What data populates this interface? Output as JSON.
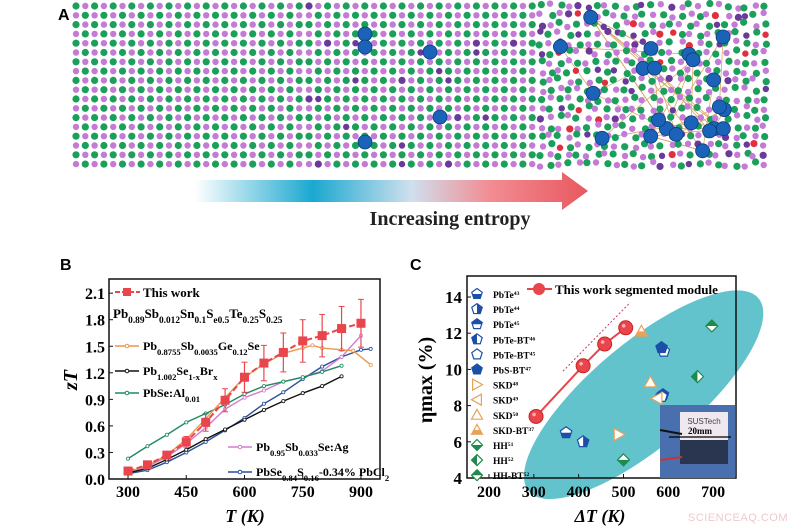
{
  "panel_labels": {
    "a": "A",
    "b": "B",
    "c": "C"
  },
  "panel_a": {
    "arrow_label": "Increasing entropy",
    "colors": {
      "green": "#1aa05a",
      "purple": "#c47ad6",
      "blue": "#1b63b8",
      "arrow_start": "#1aa8d0",
      "arrow_end": "#e8585f"
    }
  },
  "watermark": "SCIENCEAQ.COM",
  "chart_data": [
    {
      "type": "line",
      "panel": "B",
      "xlabel": "T (K)",
      "ylabel": "zT",
      "xlim": [
        251,
        949
      ],
      "ylim": [
        0,
        2.26
      ],
      "xticks": [
        300,
        450,
        600,
        750,
        900
      ],
      "yticks": [
        "0.0",
        "0.3",
        "0.6",
        "0.9",
        "1.2",
        "1.5",
        "1.8",
        "2.1"
      ],
      "grid": false,
      "series": [
        {
          "name": "This work",
          "sub_label": [
            [
              "Pb",
              ""
            ],
            [
              "0.89",
              "s"
            ],
            [
              "Sb",
              ""
            ],
            [
              "0.012",
              "s"
            ],
            [
              "Sn",
              ""
            ],
            [
              "0.1",
              "s"
            ],
            [
              "S",
              ""
            ],
            [
              "e0.5",
              "s"
            ],
            [
              "Te",
              ""
            ],
            [
              "0.25",
              "s"
            ],
            [
              "S",
              ""
            ],
            [
              "0.25",
              "s"
            ]
          ],
          "color": "#e8454d",
          "marker": "square",
          "dashed": true,
          "x": [
            300,
            350,
            400,
            450,
            500,
            550,
            600,
            650,
            700,
            750,
            800,
            850,
            900
          ],
          "y": [
            0.09,
            0.16,
            0.27,
            0.42,
            0.64,
            0.89,
            1.15,
            1.31,
            1.43,
            1.56,
            1.62,
            1.7,
            1.76
          ],
          "err": [
            0.02,
            0.03,
            0.04,
            0.06,
            0.1,
            0.13,
            0.17,
            0.2,
            0.22,
            0.24,
            0.24,
            0.25,
            0.27
          ]
        },
        {
          "name": [
            [
              "Pb",
              ""
            ],
            [
              "0.8755",
              "s"
            ],
            [
              "Sb",
              ""
            ],
            [
              "0.0035",
              "s"
            ],
            [
              "Ge",
              ""
            ],
            [
              "0.12",
              "s"
            ],
            [
              "Se",
              ""
            ]
          ],
          "color": "#e8994a",
          "x": [
            300,
            350,
            400,
            450,
            500,
            550,
            600,
            650,
            700,
            750,
            775,
            800,
            850,
            880,
            925
          ],
          "y": [
            0.08,
            0.15,
            0.27,
            0.45,
            0.68,
            0.92,
            1.15,
            1.3,
            1.42,
            1.48,
            1.51,
            1.48,
            1.46,
            1.45,
            1.29
          ]
        },
        {
          "name": [
            [
              "Pb",
              ""
            ],
            [
              "1.002",
              "s"
            ],
            [
              "Se",
              ""
            ],
            [
              "1-x",
              "s"
            ],
            [
              "Br",
              ""
            ],
            [
              "x",
              "s"
            ]
          ],
          "color": "#111111",
          "x": [
            300,
            350,
            400,
            450,
            500,
            550,
            600,
            650,
            700,
            750,
            800,
            850
          ],
          "y": [
            0.07,
            0.12,
            0.22,
            0.33,
            0.45,
            0.56,
            0.67,
            0.78,
            0.88,
            0.97,
            1.05,
            1.16
          ]
        },
        {
          "name": [
            [
              "PbSe:Al",
              ""
            ],
            [
              "0.01",
              "s"
            ]
          ],
          "color": "#1f8a5e",
          "x": [
            300,
            350,
            400,
            450,
            500,
            550,
            600,
            650,
            700,
            750,
            800,
            850
          ],
          "y": [
            0.23,
            0.37,
            0.5,
            0.64,
            0.74,
            0.84,
            0.96,
            1.05,
            1.1,
            1.15,
            1.21,
            1.28
          ]
        },
        {
          "name": [
            [
              "Pb",
              ""
            ],
            [
              "0.95",
              "s"
            ],
            [
              "Sb",
              ""
            ],
            [
              "0.033",
              "s"
            ],
            [
              "Se:Ag",
              ""
            ]
          ],
          "color": "#d67ad0",
          "x": [
            300,
            350,
            400,
            450,
            500,
            550,
            600,
            650,
            700,
            750,
            800,
            850,
            900
          ],
          "y": [
            0.08,
            0.14,
            0.25,
            0.4,
            0.58,
            0.79,
            0.92,
            1.0,
            1.1,
            1.15,
            1.22,
            1.38,
            1.62
          ]
        },
        {
          "name": [
            [
              "PbSe",
              ""
            ],
            [
              "0.84",
              "s"
            ],
            [
              "S",
              ""
            ],
            [
              "0.16",
              "s"
            ],
            [
              "-0.34% PbCl",
              ""
            ],
            [
              "2",
              "s"
            ]
          ],
          "color": "#2a4f9a",
          "x": [
            300,
            350,
            400,
            450,
            500,
            550,
            600,
            650,
            700,
            750,
            800,
            850,
            900,
            925
          ],
          "y": [
            0.06,
            0.1,
            0.19,
            0.3,
            0.42,
            0.55,
            0.69,
            0.85,
            0.98,
            1.13,
            1.27,
            1.38,
            1.46,
            1.47
          ]
        }
      ]
    },
    {
      "type": "scatter",
      "panel": "C",
      "xlabel": "ΔT (K)",
      "ylabel": "ηmax (%)",
      "xlim": [
        151,
        751
      ],
      "ylim": [
        4,
        15.16
      ],
      "xticks": [
        200,
        300,
        400,
        500,
        600,
        700
      ],
      "yticks": [
        4,
        6,
        8,
        10,
        12,
        14
      ],
      "grid": false,
      "this_work": {
        "name": "This work segmented module",
        "color": "#e8454d",
        "x": [
          305,
          410,
          458,
          505
        ],
        "y": [
          7.4,
          10.2,
          11.4,
          12.3
        ]
      },
      "trend_line": {
        "x": [
          365,
          515
        ],
        "y": [
          9.9,
          13.7
        ]
      },
      "ellipse_color": "#63c3cc",
      "legend": [
        {
          "label": "PbTe",
          "sup": "43",
          "marker": "pentagon-half-bottom",
          "color": "#1b4fa8",
          "x": [
            372
          ],
          "y": [
            6.5
          ]
        },
        {
          "label": "PbTe",
          "sup": "44",
          "marker": "pentagon-half-right",
          "color": "#1b4fa8",
          "x": [
            410
          ],
          "y": [
            6.0
          ]
        },
        {
          "label": "PbTe",
          "sup": "45",
          "marker": "pentagon-half-top",
          "color": "#1b4fa8",
          "x": [
            588
          ],
          "y": [
            8.6
          ]
        },
        {
          "label": "PbTe-BT",
          "sup": "46",
          "marker": "pentagon-half-left",
          "color": "#1b4fa8",
          "x": [
            585
          ],
          "y": [
            8.5
          ]
        },
        {
          "label": "PbTe-BT",
          "sup": "45",
          "marker": "pentagon-open",
          "color": "#1b4fa8",
          "x": [
            590
          ],
          "y": [
            11.0
          ]
        },
        {
          "label": "PbS-BT",
          "sup": "47",
          "marker": "pentagon-filled",
          "color": "#1b4fa8",
          "x": [
            585
          ],
          "y": [
            11.2
          ]
        },
        {
          "label": "SKD",
          "sup": "48",
          "marker": "triangle-right-open",
          "color": "#e8a25a",
          "x": [
            490
          ],
          "y": [
            6.4
          ]
        },
        {
          "label": "SKD",
          "sup": "49",
          "marker": "triangle-left-open",
          "color": "#e8a25a",
          "x": [
            575
          ],
          "y": [
            8.4
          ]
        },
        {
          "label": "SKD",
          "sup": "50",
          "marker": "triangle-up-open",
          "color": "#e8a25a",
          "x": [
            560
          ],
          "y": [
            9.3
          ]
        },
        {
          "label": "SKD-BT",
          "sup": "37",
          "marker": "triangle-up-half",
          "color": "#e8a25a",
          "x": [
            540
          ],
          "y": [
            12.1
          ]
        },
        {
          "label": "HH",
          "sup": "51",
          "marker": "diamond-half-bottom",
          "color": "#1f8a4e",
          "x": [
            500
          ],
          "y": [
            5.0
          ]
        },
        {
          "label": "HH",
          "sup": "52",
          "marker": "diamond-half-left",
          "color": "#1f8a4e",
          "x": [
            665
          ],
          "y": [
            9.6
          ]
        },
        {
          "label": "HH-BT",
          "sup": "52",
          "marker": "diamond-half-top",
          "color": "#1f8a4e",
          "x": [
            697
          ],
          "y": [
            12.4
          ]
        }
      ],
      "inset": {
        "brand": "SUSTech",
        "scale_label": "20mm"
      }
    }
  ]
}
